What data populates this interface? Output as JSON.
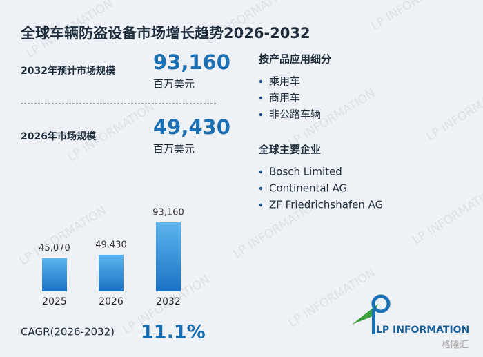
{
  "title": "全球车辆防盗设备市场增长趋势2026-2032",
  "stats": [
    {
      "label": "2032年预计市场规模",
      "value": "93,160",
      "unit": "百万美元"
    },
    {
      "label": "2026年市场规模",
      "value": "49,430",
      "unit": "百万美元"
    }
  ],
  "chart_data": {
    "type": "bar",
    "categories": [
      "2025",
      "2026",
      "2032"
    ],
    "values": [
      45070,
      49430,
      93160
    ],
    "value_labels": [
      "45,070",
      "49,430",
      "93,160"
    ],
    "color": "#2a86d4"
  },
  "cagr": {
    "label": "CAGR(2026-2032)",
    "value": "11.1%"
  },
  "lists": [
    {
      "heading": "按产品应用细分",
      "items": [
        "乘用车",
        "商用车",
        "非公路车辆"
      ]
    },
    {
      "heading": "全球主要企业",
      "items": [
        "Bosch Limited",
        "Continental AG",
        "ZF Friedrichshafen AG"
      ]
    }
  ],
  "watermark": "LP INFORMATION",
  "logo": "LP INFORMATION",
  "corner_mark": "格隆汇"
}
